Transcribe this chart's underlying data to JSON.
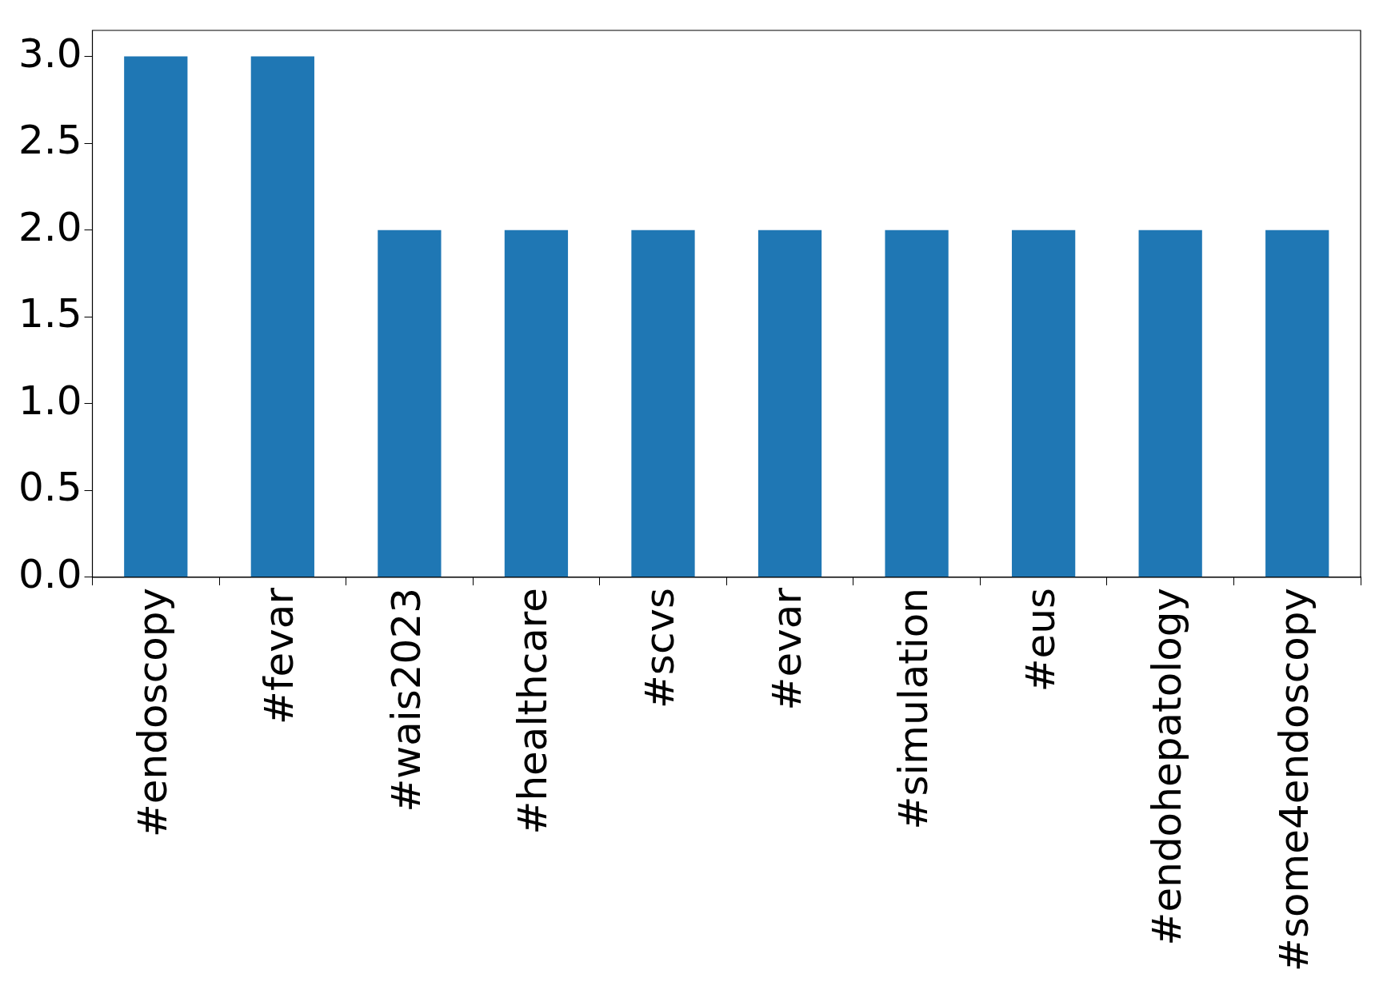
{
  "chart_data": {
    "type": "bar",
    "categories": [
      "#endoscopy",
      "#fevar",
      "#wais2023",
      "#healthcare",
      "#scvs",
      "#evar",
      "#simulation",
      "#eus",
      "#endohepatology",
      "#some4endoscopy"
    ],
    "values": [
      3,
      3,
      2,
      2,
      2,
      2,
      2,
      2,
      2,
      2
    ],
    "color": "#1f77b4",
    "ylim": [
      0,
      3.15
    ],
    "yticks": [
      {
        "value": 0,
        "label": "0.0"
      },
      {
        "value": 0.5,
        "label": "0.5"
      },
      {
        "value": 1,
        "label": "1.0"
      },
      {
        "value": 1.5,
        "label": "1.5"
      },
      {
        "value": 2,
        "label": "2.0"
      },
      {
        "value": 2.5,
        "label": "2.5"
      },
      {
        "value": 3,
        "label": "3.0"
      }
    ],
    "grid": false,
    "legend": false
  }
}
